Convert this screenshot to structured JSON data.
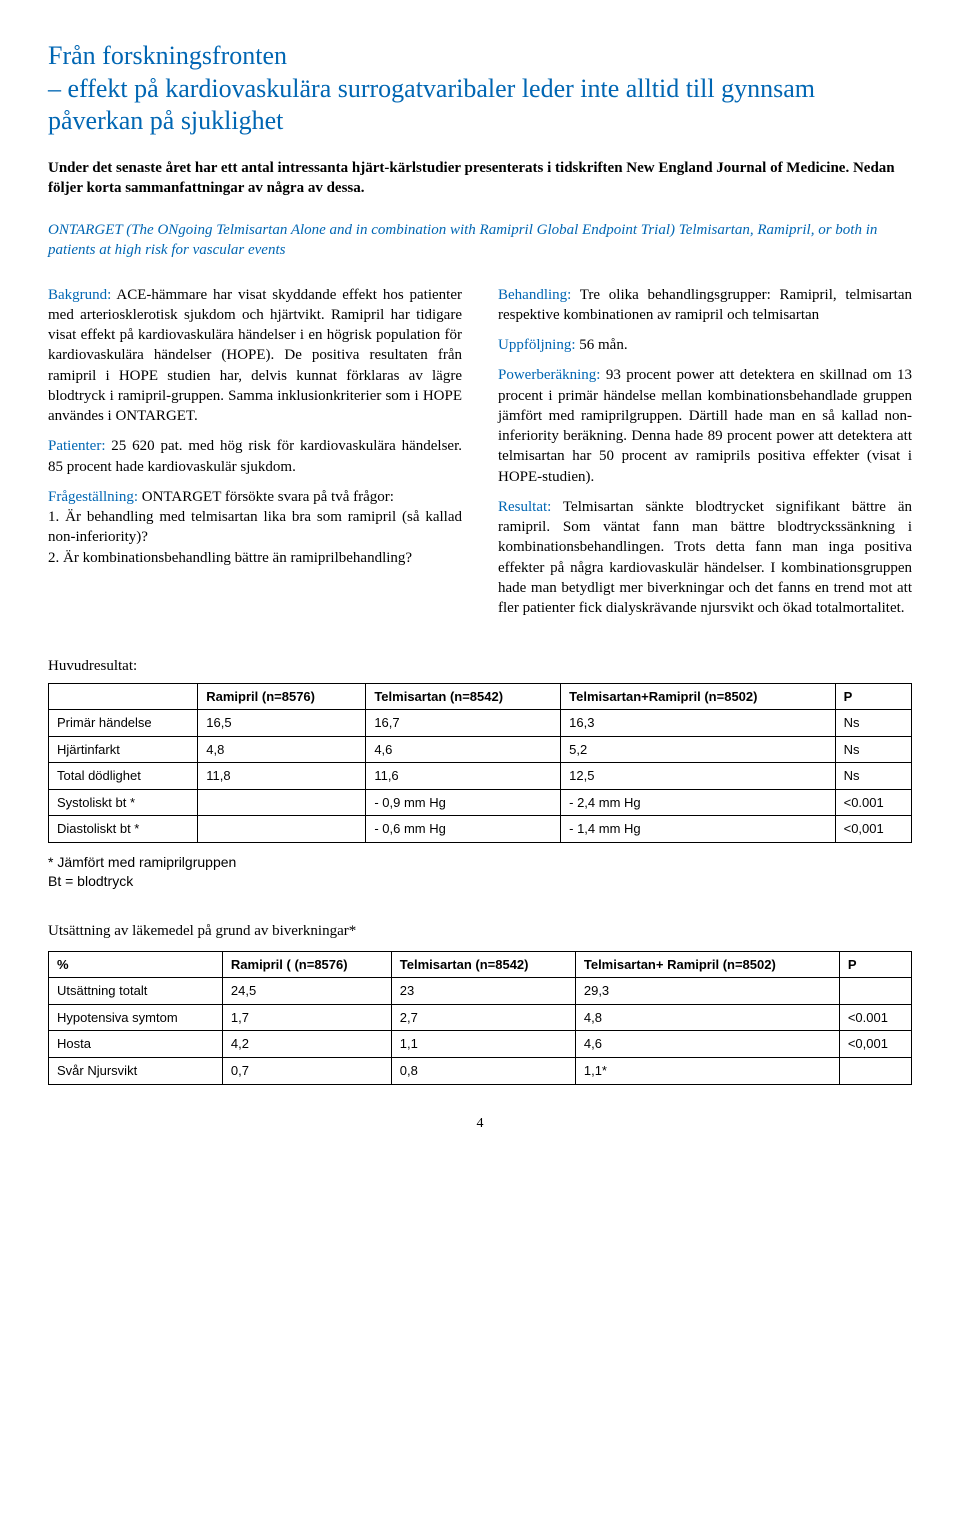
{
  "title": "Från forskningsfronten\n– effekt på kardiovaskulära surrogatvaribaler leder inte alltid till gynnsam påverkan på sjuklighet",
  "intro": "Under det senaste året har ett antal intressanta hjärt-kärlstudier presenterats i tidskriften New England Journal of Medicine. Nedan följer korta sammanfattningar av några av dessa.",
  "trial_name": "ONTARGET (The ONgoing Telmisartan Alone and in combination with Ramipril Global Endpoint Trial) Telmisartan, Ramipril, or both in patients at high risk for vascular events",
  "left": {
    "bakgrund_label": "Bakgrund:",
    "bakgrund": " ACE-hämmare har visat skyddande effekt hos patienter med arteriosklerotisk sjukdom och hjärtvikt. Ramipril har tidigare visat effekt på kardiovaskulära händelser i en högrisk population för kardiovaskulära händelser (HOPE). De positiva resultaten från ramipril i HOPE studien har, delvis kunnat förklaras av lägre blodtryck i ramipril-gruppen. Samma inklusionkriterier som i HOPE användes i ONTARGET.",
    "patienter_label": "Patienter:",
    "patienter": " 25 620 pat. med hög risk för kardiovaskulära händelser. 85 procent hade kardiovaskulär sjukdom.",
    "fraga_label": "Frågeställning:",
    "fraga_intro": " ONTARGET försökte svara på två frågor:",
    "fraga1": "1. Är behandling med telmisartan lika bra som ramipril (så kallad non-inferiority)?",
    "fraga2": "2. Är kombinationsbehandling bättre än ramiprilbehandling?"
  },
  "right": {
    "behandling_label": "Behandling:",
    "behandling": " Tre olika behandlingsgrupper: Ramipril, telmisartan respektive kombinationen av ramipril och telmisartan",
    "uppfoljning_label": "Uppföljning:",
    "uppfoljning": " 56 mån.",
    "power_label": "Powerberäkning:",
    "power": " 93 procent power att detektera en skillnad om 13 procent i primär händelse mellan kombinationsbehandlade gruppen jämfört med ramiprilgruppen. Därtill hade man en så kallad non-inferiority beräkning. Denna hade 89 procent power att detektera att telmisartan har 50 procent av ramiprils positiva effekter (visat i HOPE-studien).",
    "resultat_label": "Resultat:",
    "resultat": " Telmisartan sänkte blodtrycket signifikant bättre än ramipril. Som väntat fann man bättre blodtryckssänkning i kombinationsbehandlingen. Trots detta fann man inga positiva effekter på några kardiovaskulär händelser. I kombinationsgruppen hade man betydligt mer biverkningar och det fanns en trend mot att fler patienter fick dialyskrävande njursvikt och ökad totalmortalitet."
  },
  "table1": {
    "title": "Huvudresultat:",
    "columns": [
      "",
      "Ramipril (n=8576)",
      "Telmisartan (n=8542)",
      "Telmisartan+Ramipril (n=8502)",
      "P"
    ],
    "rows": [
      [
        "Primär händelse",
        "16,5",
        "16,7",
        "16,3",
        "Ns"
      ],
      [
        "Hjärtinfarkt",
        "4,8",
        "4,6",
        "5,2",
        "Ns"
      ],
      [
        "Total dödlighet",
        "11,8",
        "11,6",
        "12,5",
        "Ns"
      ],
      [
        "Systoliskt bt *",
        "",
        "- 0,9 mm Hg",
        "- 2,4 mm Hg",
        "<0.001"
      ],
      [
        "Diastoliskt bt *",
        "",
        "- 0,6 mm Hg",
        "- 1,4 mm Hg",
        "<0,001"
      ]
    ],
    "footnote1": "* Jämfört med ramiprilgruppen",
    "footnote2": "Bt = blodtryck"
  },
  "table2": {
    "title": "Utsättning av läkemedel på grund av biverkningar*",
    "columns": [
      "%",
      "Ramipril ( (n=8576)",
      "Telmisartan (n=8542)",
      "Telmisartan+ Ramipril (n=8502)",
      "P"
    ],
    "rows": [
      [
        "Utsättning totalt",
        "24,5",
        "23",
        "29,3",
        ""
      ],
      [
        "Hypotensiva symtom",
        "1,7",
        "2,7",
        "4,8",
        "<0.001"
      ],
      [
        "Hosta",
        "4,2",
        "1,1",
        "4,6",
        "<0,001"
      ],
      [
        "Svår Njursvikt",
        "0,7",
        "0,8",
        "1,1*",
        ""
      ]
    ]
  },
  "page_number": "4"
}
